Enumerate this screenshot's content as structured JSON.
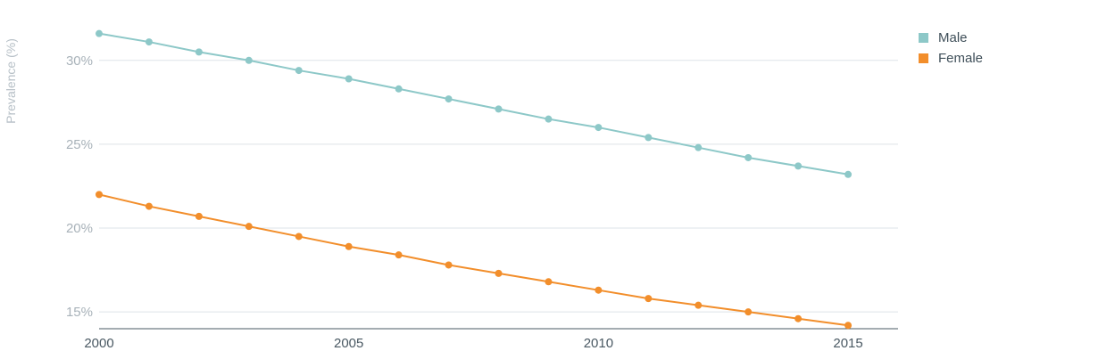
{
  "chart_data": {
    "type": "line",
    "ylabel": "Prevalence (%)",
    "xlabel": "",
    "x": [
      2000,
      2001,
      2002,
      2003,
      2004,
      2005,
      2006,
      2007,
      2008,
      2009,
      2010,
      2011,
      2012,
      2013,
      2014,
      2015
    ],
    "x_ticks": [
      "2000",
      "2005",
      "2010",
      "2015"
    ],
    "y_ticks": [
      "15%",
      "20%",
      "25%",
      "30%"
    ],
    "y_tick_values": [
      15,
      20,
      25,
      30
    ],
    "xlim": [
      2000,
      2016
    ],
    "ylim": [
      14,
      33.6
    ],
    "grid": true,
    "legend_position": "top-right",
    "series": [
      {
        "name": "Male",
        "color": "#8dc8c8",
        "values": [
          31.6,
          31.1,
          30.5,
          30.0,
          29.4,
          28.9,
          28.3,
          27.7,
          27.1,
          26.5,
          26.0,
          25.4,
          24.8,
          24.2,
          23.7,
          23.2
        ]
      },
      {
        "name": "Female",
        "color": "#f28e2b",
        "values": [
          22.0,
          21.3,
          20.7,
          20.1,
          19.5,
          18.9,
          18.4,
          17.8,
          17.3,
          16.8,
          16.3,
          15.8,
          15.4,
          15.0,
          14.6,
          14.2
        ]
      }
    ]
  }
}
